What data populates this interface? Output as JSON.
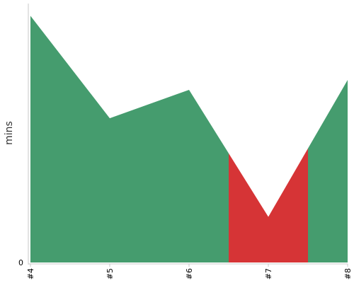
{
  "chart_data": {
    "type": "area",
    "x": [
      "#4",
      "#5",
      "#6",
      "#7",
      "#8"
    ],
    "values": [
      100,
      58.5,
      70,
      18.5,
      74
    ],
    "ylabel": "mins",
    "xlabel": "",
    "y_tick_labels": [
      "0"
    ],
    "ylim": [
      0,
      105
    ],
    "grid": false,
    "highlight": {
      "from": "#6.5",
      "to": "#7.5",
      "color": "#d63436"
    },
    "colors": {
      "area": "#459c6e",
      "highlight": "#d63436",
      "axis": "#c9c9c9"
    }
  }
}
